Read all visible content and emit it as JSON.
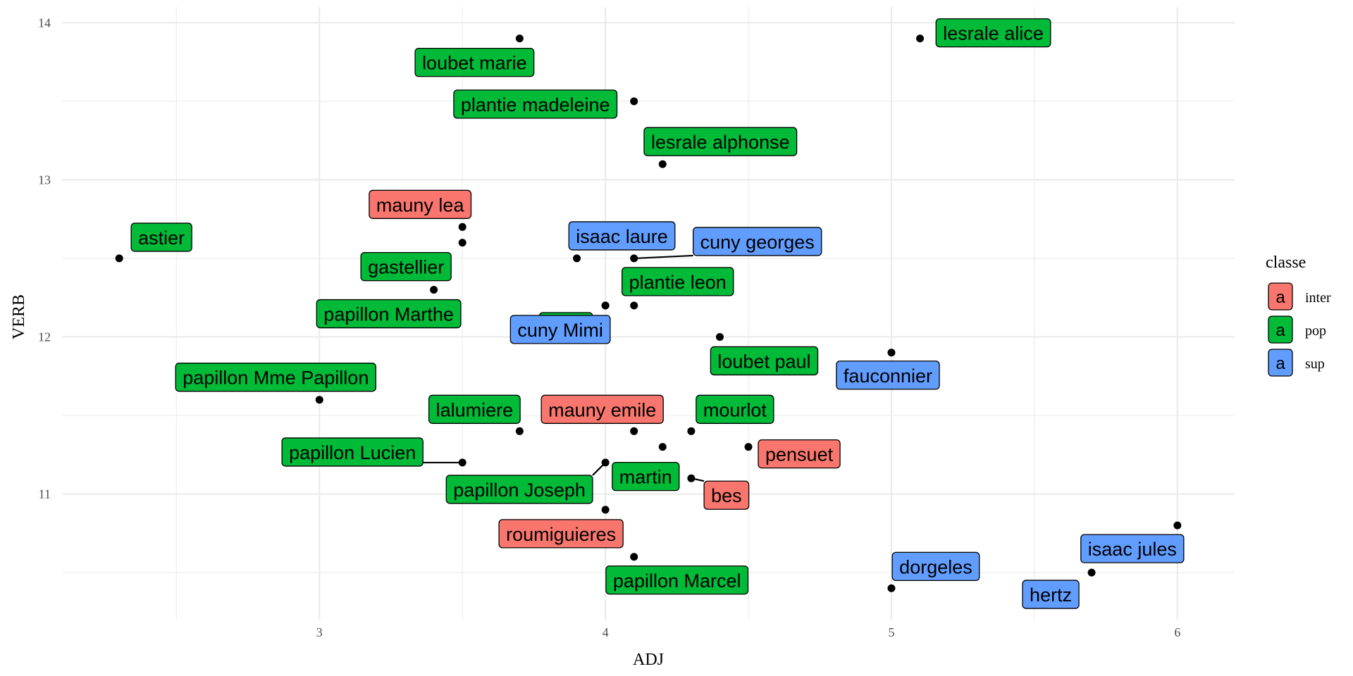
{
  "chart_data": {
    "type": "scatter",
    "xlabel": "ADJ",
    "ylabel": "VERB",
    "xlim": [
      2.1,
      6.2
    ],
    "ylim": [
      10.2,
      14.1
    ],
    "x_ticks": [
      3,
      4,
      5,
      6
    ],
    "y_ticks": [
      11,
      12,
      13,
      14
    ],
    "grid": true,
    "legend": {
      "title": "classe",
      "position": "right",
      "key_glyph": "a",
      "entries": [
        {
          "name": "inter",
          "color": "#F8766D"
        },
        {
          "name": "pop",
          "color": "#00BA38"
        },
        {
          "name": "sup",
          "color": "#619CFF"
        }
      ]
    },
    "points": [
      {
        "name": "lesrale alice",
        "x": 5.1,
        "y": 13.9,
        "classe": "pop"
      },
      {
        "name": "loubet marie",
        "x": 3.7,
        "y": 13.9,
        "classe": "pop"
      },
      {
        "name": "plantie madeleine",
        "x": 4.1,
        "y": 13.5,
        "classe": "pop"
      },
      {
        "name": "lesrale alphonse",
        "x": 4.2,
        "y": 13.1,
        "classe": "pop"
      },
      {
        "name": "astier",
        "x": 2.3,
        "y": 12.5,
        "classe": "pop"
      },
      {
        "name": "mauny lea",
        "x": 3.5,
        "y": 12.7,
        "classe": "inter"
      },
      {
        "name": "gastellier",
        "x": 3.5,
        "y": 12.6,
        "classe": "pop"
      },
      {
        "name": "papillon Marthe",
        "x": 3.4,
        "y": 12.3,
        "classe": "pop"
      },
      {
        "name": "isaac laure",
        "x": 3.9,
        "y": 12.5,
        "classe": "sup"
      },
      {
        "name": "cuny georges",
        "x": 4.1,
        "y": 12.5,
        "classe": "sup"
      },
      {
        "name": "sigal",
        "x": 4.0,
        "y": 12.2,
        "classe": "pop"
      },
      {
        "name": "plantie leon",
        "x": 4.1,
        "y": 12.2,
        "classe": "pop"
      },
      {
        "name": "cuny Mimi",
        "x": 4.0,
        "y": 12.2,
        "classe": "sup"
      },
      {
        "name": "loubet paul",
        "x": 4.4,
        "y": 12.0,
        "classe": "pop"
      },
      {
        "name": "fauconnier",
        "x": 5.0,
        "y": 11.9,
        "classe": "sup"
      },
      {
        "name": "papillon Mme Papillon",
        "x": 3.0,
        "y": 11.6,
        "classe": "pop"
      },
      {
        "name": "lalumiere",
        "x": 3.7,
        "y": 11.4,
        "classe": "pop"
      },
      {
        "name": "mauny emile",
        "x": 4.1,
        "y": 11.4,
        "classe": "inter"
      },
      {
        "name": "mourlot",
        "x": 4.3,
        "y": 11.4,
        "classe": "pop"
      },
      {
        "name": "pensuet",
        "x": 4.5,
        "y": 11.3,
        "classe": "inter"
      },
      {
        "name": "papillon Lucien",
        "x": 3.5,
        "y": 11.2,
        "classe": "pop"
      },
      {
        "name": "martin",
        "x": 4.2,
        "y": 11.3,
        "classe": "pop"
      },
      {
        "name": "papillon Joseph",
        "x": 4.0,
        "y": 11.2,
        "classe": "pop"
      },
      {
        "name": "bes",
        "x": 4.3,
        "y": 11.1,
        "classe": "inter"
      },
      {
        "name": "roumiguieres",
        "x": 4.0,
        "y": 10.9,
        "classe": "inter"
      },
      {
        "name": "papillon Marcel",
        "x": 4.1,
        "y": 10.6,
        "classe": "pop"
      },
      {
        "name": "dorgeles",
        "x": 5.0,
        "y": 10.4,
        "classe": "sup"
      },
      {
        "name": "isaac jules",
        "x": 6.0,
        "y": 10.8,
        "classe": "sup"
      },
      {
        "name": "hertz",
        "x": 5.7,
        "y": 10.5,
        "classe": "sup"
      }
    ]
  }
}
